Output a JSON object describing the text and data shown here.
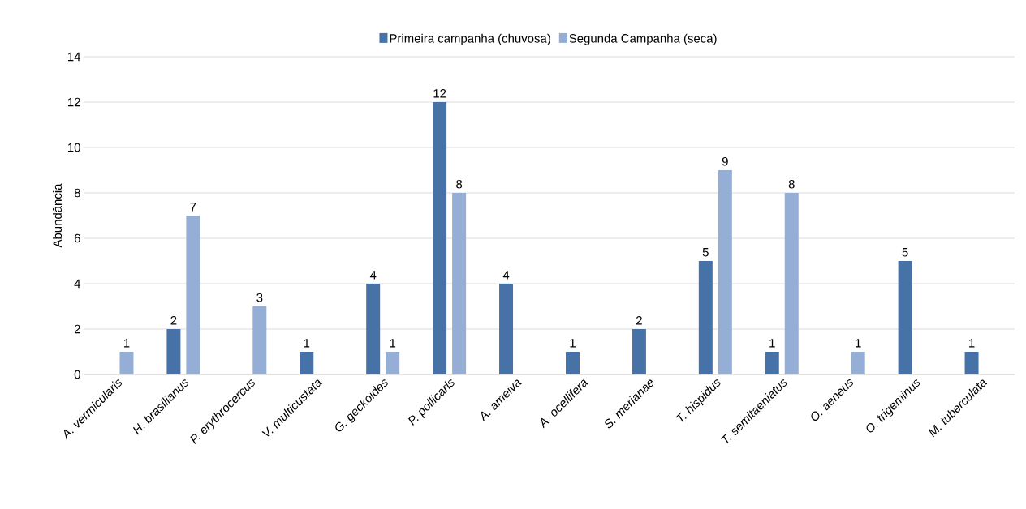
{
  "chart_data": {
    "type": "bar",
    "ylabel": "Abundância",
    "categories": [
      "A. vermicularis",
      "H. brasilianus",
      "P. erythrocercus",
      "V. multicustata",
      "G. geckoides",
      "P. pollicaris",
      "A. ameiva",
      "A. ocellifera",
      "S. merianae",
      "T. hispidus",
      "T. semitaeniatus",
      "O. aeneus",
      "O. trigeminus",
      "M. tuberculata"
    ],
    "series": [
      {
        "name": "Primeira campanha (chuvosa)",
        "color": "#4672a7",
        "values": [
          null,
          2,
          null,
          1,
          4,
          12,
          4,
          1,
          2,
          5,
          1,
          null,
          5,
          1
        ]
      },
      {
        "name": "Segunda Campanha (seca)",
        "color": "#94aed5",
        "values": [
          1,
          7,
          3,
          null,
          1,
          8,
          null,
          null,
          null,
          9,
          8,
          1,
          null,
          null
        ]
      }
    ],
    "ylim": [
      0,
      14
    ],
    "yticks": [
      0,
      2,
      4,
      6,
      8,
      10,
      12,
      14
    ],
    "grid": "y",
    "legend": "top",
    "data_labels": true
  }
}
